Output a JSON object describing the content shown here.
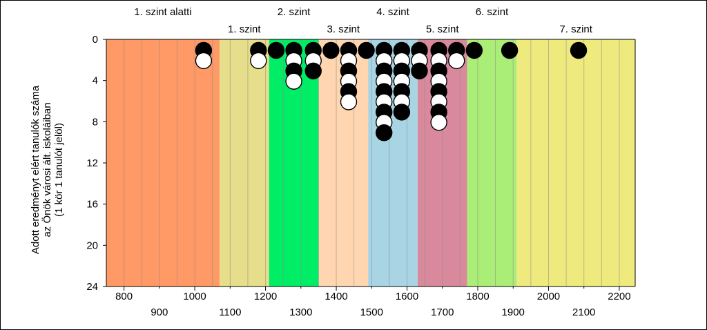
{
  "chart_data": {
    "type": "scatter",
    "title": "",
    "ylabel_lines": [
      "Adott eredményt elért tanulók száma",
      "az Önök városi ált. iskoláiban",
      "(1 kör 1 tanulót jelöl)"
    ],
    "xlabel": "",
    "xlim": [
      750,
      2245
    ],
    "ylim": [
      24,
      0
    ],
    "y_ticks": [
      0,
      4,
      8,
      12,
      16,
      20,
      24
    ],
    "x_ticks_upper": [
      800,
      1000,
      1200,
      1400,
      1600,
      1800,
      2000,
      2200
    ],
    "x_ticks_lower": [
      900,
      1100,
      1300,
      1500,
      1700,
      1900,
      2100
    ],
    "grid": "vertical, every 50 points",
    "level_bands": [
      {
        "name": "1. szint alatti",
        "from": 750,
        "to": 1070,
        "color": "#FF9966",
        "label_row": "top"
      },
      {
        "name": "1. szint",
        "from": 1070,
        "to": 1210,
        "color": "#E6DE8A",
        "label_row": "bottom"
      },
      {
        "name": "2. szint",
        "from": 1210,
        "to": 1350,
        "color": "#00EE66",
        "label_row": "top"
      },
      {
        "name": "3. szint",
        "from": 1350,
        "to": 1490,
        "color": "#FFD6B0",
        "label_row": "bottom"
      },
      {
        "name": "4. szint",
        "from": 1490,
        "to": 1630,
        "color": "#A8D4E4",
        "label_row": "top"
      },
      {
        "name": "5. szint",
        "from": 1630,
        "to": 1770,
        "color": "#D9899C",
        "label_row": "bottom"
      },
      {
        "name": "6. szint",
        "from": 1770,
        "to": 1910,
        "color": "#AAEE77",
        "label_row": "top"
      },
      {
        "name": "7. szint",
        "from": 1910,
        "to": 2245,
        "color": "#EEEA7E",
        "label_row": "bottom"
      }
    ],
    "series": [
      {
        "marker": "black",
        "points": [
          [
            1025,
            1
          ],
          [
            1180,
            1
          ],
          [
            1230,
            1
          ],
          [
            1280,
            1
          ],
          [
            1280,
            3
          ],
          [
            1335,
            1
          ],
          [
            1335,
            3
          ],
          [
            1385,
            1
          ],
          [
            1435,
            1
          ],
          [
            1435,
            3
          ],
          [
            1435,
            5
          ],
          [
            1485,
            1
          ],
          [
            1535,
            1
          ],
          [
            1535,
            3
          ],
          [
            1535,
            5
          ],
          [
            1535,
            7
          ],
          [
            1535,
            9
          ],
          [
            1585,
            1
          ],
          [
            1585,
            3
          ],
          [
            1585,
            5
          ],
          [
            1585,
            7
          ],
          [
            1635,
            1
          ],
          [
            1635,
            3
          ],
          [
            1690,
            1
          ],
          [
            1690,
            3
          ],
          [
            1690,
            5
          ],
          [
            1690,
            7
          ],
          [
            1740,
            1
          ],
          [
            1790,
            1
          ],
          [
            1890,
            1
          ],
          [
            2085,
            1
          ]
        ]
      },
      {
        "marker": "white",
        "points": [
          [
            1025,
            2
          ],
          [
            1180,
            2
          ],
          [
            1280,
            2
          ],
          [
            1280,
            4
          ],
          [
            1335,
            2
          ],
          [
            1435,
            2
          ],
          [
            1435,
            4
          ],
          [
            1435,
            6
          ],
          [
            1535,
            2
          ],
          [
            1535,
            4
          ],
          [
            1535,
            6
          ],
          [
            1535,
            8
          ],
          [
            1585,
            2
          ],
          [
            1585,
            4
          ],
          [
            1585,
            6
          ],
          [
            1635,
            2
          ],
          [
            1690,
            2
          ],
          [
            1690,
            4
          ],
          [
            1690,
            6
          ],
          [
            1690,
            8
          ],
          [
            1740,
            2
          ]
        ]
      }
    ]
  }
}
